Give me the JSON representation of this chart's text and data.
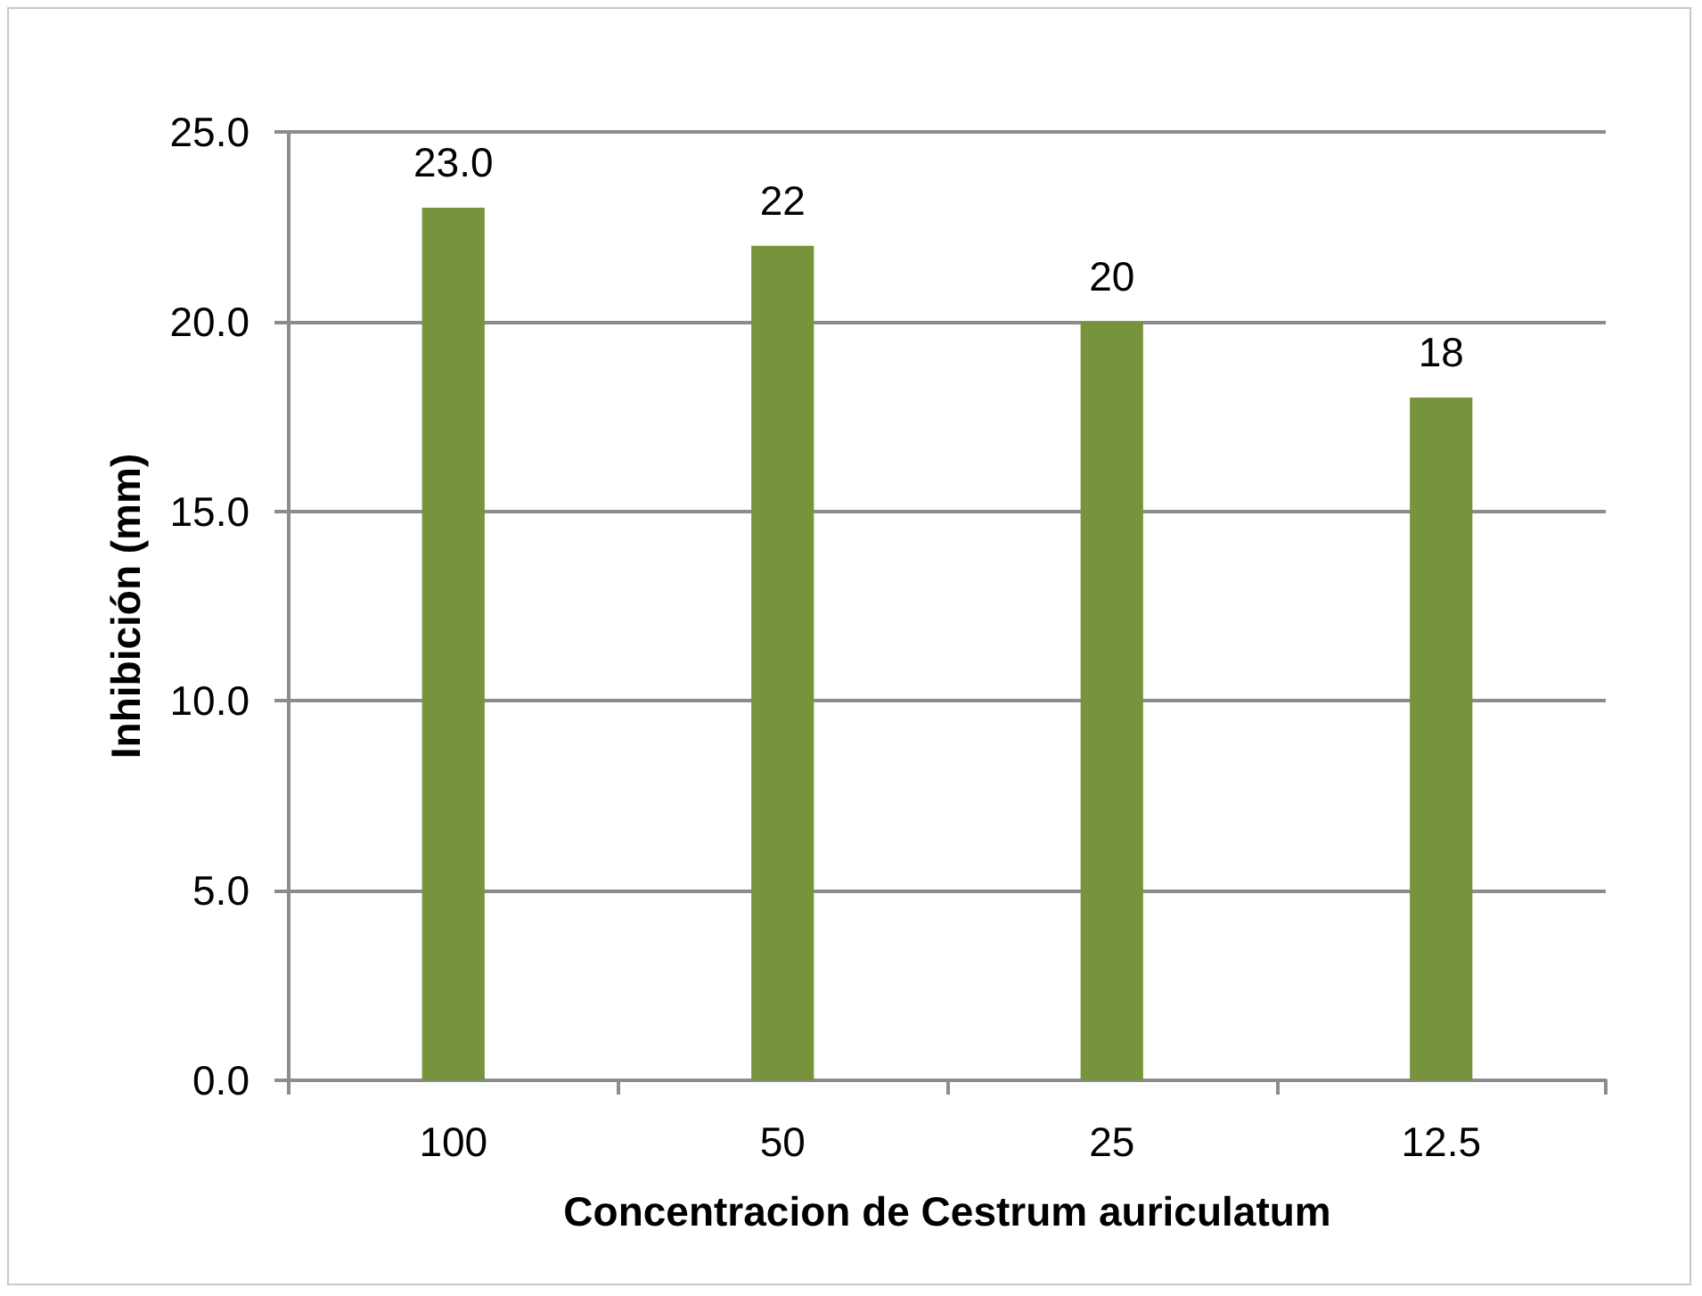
{
  "chart_data": {
    "type": "bar",
    "xlabel": "Concentracion de Cestrum auriculatum",
    "ylabel": "Inhibición (mm)",
    "categories": [
      "100",
      "50",
      "25",
      "12.5"
    ],
    "values": [
      23.0,
      22,
      20,
      18
    ],
    "color": "#77933c",
    "value_labels": [
      "23.0",
      "22",
      "20",
      "18"
    ],
    "ylim": [
      0,
      25
    ],
    "yticks": [
      {
        "value": 0,
        "label": "0.0"
      },
      {
        "value": 5,
        "label": "5.0"
      },
      {
        "value": 10,
        "label": "10.0"
      },
      {
        "value": 15,
        "label": "15.0"
      },
      {
        "value": 20,
        "label": "20.0"
      },
      {
        "value": 25,
        "label": "25.0"
      }
    ],
    "grid": "y"
  }
}
